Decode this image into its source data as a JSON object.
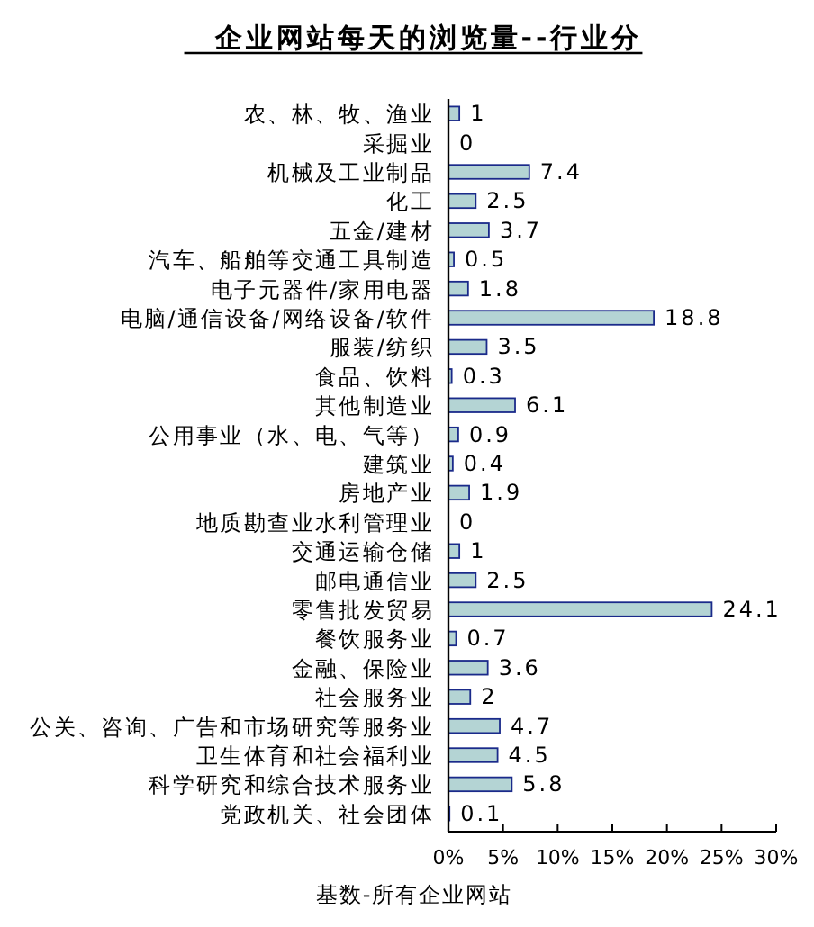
{
  "chart_data": {
    "type": "bar",
    "orientation": "horizontal",
    "title": "企业网站每天的浏览量--行业分",
    "categories": [
      "农、林、牧、渔业",
      "采掘业",
      "机械及工业制品",
      "化工",
      "五金/建材",
      "汽车、船舶等交通工具制造",
      "电子元器件/家用电器",
      "电脑/通信设备/网络设备/软件",
      "服装/纺织",
      "食品、饮料",
      "其他制造业",
      "公用事业（水、电、气等）",
      "建筑业",
      "房地产业",
      "地质勘查业水利管理业",
      "交通运输仓储",
      "邮电通信业",
      "零售批发贸易",
      "餐饮服务业",
      "金融、保险业",
      "社会服务业",
      "公关、咨询、广告和市场研究等服务业",
      "卫生体育和社会福利业",
      "科学研究和综合技术服务业",
      "党政机关、社会团体"
    ],
    "values": [
      1,
      0,
      7.4,
      2.5,
      3.7,
      0.5,
      1.8,
      18.8,
      3.5,
      0.3,
      6.1,
      0.9,
      0.4,
      1.9,
      0,
      1,
      2.5,
      24.1,
      0.7,
      3.6,
      2,
      4.7,
      4.5,
      5.8,
      0.1
    ],
    "color": "#b4d4d4",
    "data_labels": true,
    "xlim": [
      0,
      30
    ],
    "xticks": [
      {
        "value": 0,
        "label": "0%"
      },
      {
        "value": 5,
        "label": "5%"
      },
      {
        "value": 10,
        "label": "10%"
      },
      {
        "value": 15,
        "label": "15%"
      },
      {
        "value": 20,
        "label": "20%"
      },
      {
        "value": 25,
        "label": "25%"
      },
      {
        "value": 30,
        "label": "30%"
      }
    ],
    "annotations": [
      "基数-所有企业网站"
    ]
  }
}
